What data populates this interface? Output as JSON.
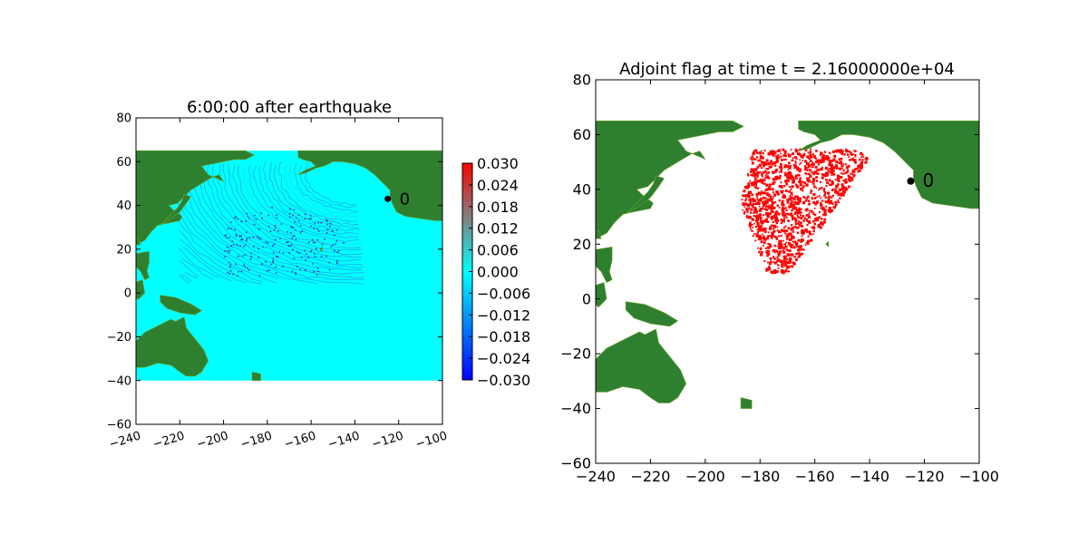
{
  "chart_data": [
    {
      "type": "heatmap",
      "title": "6:00:00 after earthquake",
      "xlabel": "",
      "ylabel": "",
      "xlim": [
        -240,
        -100
      ],
      "ylim": [
        -60,
        80
      ],
      "x_ticks": [
        -240,
        -220,
        -200,
        -180,
        -160,
        -140,
        -120,
        -100
      ],
      "y_ticks": [
        -60,
        -40,
        -20,
        0,
        20,
        40,
        60,
        80
      ],
      "x_tick_labels": [
        "−240",
        "−220",
        "−200",
        "−180",
        "−160",
        "−140",
        "−120",
        "−100"
      ],
      "y_tick_labels": [
        "−60",
        "−40",
        "−20",
        "0",
        "20",
        "40",
        "60",
        "80"
      ],
      "x_tick_rotation": "rotated",
      "data_extent": {
        "x": [
          -240,
          -100
        ],
        "y": [
          -40,
          65
        ]
      },
      "colorbar": {
        "colormap": "blue-cyan-red",
        "vmin": -0.03,
        "vmax": 0.03,
        "ticks": [
          0.03,
          0.024,
          0.018,
          0.012,
          0.006,
          0.0,
          -0.006,
          -0.012,
          -0.018,
          -0.024,
          -0.03
        ],
        "tick_labels": [
          "0.030",
          "0.024",
          "0.018",
          "0.012",
          "0.006",
          "0.000",
          "−0.006",
          "−0.012",
          "−0.018",
          "−0.024",
          "−0.030"
        ],
        "colors": [
          "#0000ff",
          "#00ffff",
          "#ff0000"
        ]
      },
      "background_value": 0.0,
      "background_color": "#00ffff",
      "land_color": "#2f7f30",
      "gauge": {
        "label": "0",
        "lon": -125,
        "lat": 43
      },
      "wave_front": {
        "description_value_range": [
          -0.03,
          0.03
        ],
        "lon_range": [
          -220,
          -135
        ],
        "lat_range": [
          3,
          55
        ]
      }
    },
    {
      "type": "heatmap",
      "title": "Adjoint flag at time t = 2.16000000e+04",
      "xlabel": "",
      "ylabel": "",
      "xlim": [
        -240,
        -100
      ],
      "ylim": [
        -60,
        80
      ],
      "x_ticks": [
        -240,
        -220,
        -200,
        -180,
        -160,
        -140,
        -120,
        -100
      ],
      "y_ticks": [
        -60,
        -40,
        -20,
        0,
        20,
        40,
        60,
        80
      ],
      "x_tick_labels": [
        "−240",
        "−220",
        "−200",
        "−180",
        "−160",
        "−140",
        "−120",
        "−100"
      ],
      "y_tick_labels": [
        "−60",
        "−40",
        "−20",
        "0",
        "20",
        "40",
        "60",
        "80"
      ],
      "data_extent": {
        "x": [
          -240,
          -100
        ],
        "y": [
          -40,
          65
        ]
      },
      "flag_color": "#ff0000",
      "land_color": "#2f7f30",
      "gauge": {
        "label": "0",
        "lon": -125,
        "lat": 43
      },
      "flagged_region": {
        "lon_range": [
          -195,
          -140
        ],
        "lat_range": [
          10,
          55
        ]
      }
    }
  ],
  "land_polygons": [
    {
      "name": "north-america",
      "points": [
        [
          -152,
          65
        ],
        [
          -100,
          65
        ],
        [
          -100,
          33
        ],
        [
          -103,
          33
        ],
        [
          -110,
          34
        ],
        [
          -117,
          35
        ],
        [
          -121,
          37
        ],
        [
          -123,
          41
        ],
        [
          -124,
          44
        ],
        [
          -124,
          47
        ],
        [
          -126,
          49
        ],
        [
          -131,
          54
        ],
        [
          -135,
          57
        ],
        [
          -140,
          59
        ],
        [
          -146,
          60
        ],
        [
          -150,
          60
        ],
        [
          -154,
          58
        ],
        [
          -158,
          57
        ],
        [
          -162,
          55
        ],
        [
          -166,
          54
        ],
        [
          -163,
          56
        ],
        [
          -158,
          58
        ],
        [
          -160,
          60
        ],
        [
          -164,
          61
        ],
        [
          -166,
          62
        ],
        [
          -166,
          65
        ]
      ]
    },
    {
      "name": "asia",
      "points": [
        [
          -240,
          65
        ],
        [
          -190,
          65
        ],
        [
          -186,
          63
        ],
        [
          -190,
          61
        ],
        [
          -195,
          61
        ],
        [
          -200,
          60
        ],
        [
          -205,
          59
        ],
        [
          -210,
          58
        ],
        [
          -207,
          54
        ],
        [
          -200,
          51
        ],
        [
          -202,
          54
        ],
        [
          -205,
          53
        ],
        [
          -210,
          50
        ],
        [
          -215,
          47
        ],
        [
          -218,
          44
        ],
        [
          -221,
          41
        ],
        [
          -225,
          40
        ],
        [
          -223,
          38
        ],
        [
          -219,
          35
        ],
        [
          -220,
          33
        ],
        [
          -225,
          32
        ],
        [
          -230,
          31
        ],
        [
          -233,
          28
        ],
        [
          -236,
          24
        ],
        [
          -240,
          22
        ]
      ]
    },
    {
      "name": "japan",
      "points": [
        [
          -218,
          45
        ],
        [
          -215,
          44
        ],
        [
          -217,
          41
        ],
        [
          -220,
          37
        ],
        [
          -224,
          34
        ],
        [
          -229,
          31
        ],
        [
          -227,
          33
        ],
        [
          -224,
          36
        ],
        [
          -221,
          39
        ],
        [
          -219,
          42
        ]
      ]
    },
    {
      "name": "taiwan",
      "points": [
        [
          -239,
          25
        ],
        [
          -238,
          22
        ],
        [
          -240,
          22
        ],
        [
          -240,
          25
        ]
      ]
    },
    {
      "name": "philippines",
      "points": [
        [
          -240,
          18
        ],
        [
          -234,
          19
        ],
        [
          -234,
          14
        ],
        [
          -235,
          10
        ],
        [
          -234,
          7
        ],
        [
          -236,
          6
        ],
        [
          -238,
          10
        ],
        [
          -240,
          12
        ]
      ]
    },
    {
      "name": "borneo",
      "points": [
        [
          -240,
          5
        ],
        [
          -237,
          6
        ],
        [
          -236,
          0
        ],
        [
          -239,
          -3
        ],
        [
          -240,
          -2
        ]
      ]
    },
    {
      "name": "new-guinea",
      "points": [
        [
          -229,
          -1
        ],
        [
          -222,
          -2
        ],
        [
          -215,
          -5
        ],
        [
          -210,
          -8
        ],
        [
          -213,
          -10
        ],
        [
          -220,
          -9
        ],
        [
          -226,
          -7
        ],
        [
          -229,
          -4
        ]
      ]
    },
    {
      "name": "australia",
      "points": [
        [
          -240,
          -22
        ],
        [
          -236,
          -18
        ],
        [
          -230,
          -15
        ],
        [
          -224,
          -12
        ],
        [
          -222,
          -13
        ],
        [
          -218,
          -11
        ],
        [
          -217,
          -16
        ],
        [
          -213,
          -21
        ],
        [
          -209,
          -26
        ],
        [
          -207,
          -31
        ],
        [
          -210,
          -36
        ],
        [
          -213,
          -38
        ],
        [
          -217,
          -38
        ],
        [
          -220,
          -36
        ],
        [
          -224,
          -33
        ],
        [
          -230,
          -32
        ],
        [
          -236,
          -34
        ],
        [
          -240,
          -34
        ]
      ]
    },
    {
      "name": "new-zealand",
      "points": [
        [
          -187,
          -36
        ],
        [
          -183,
          -37
        ],
        [
          -183,
          -40
        ],
        [
          -185,
          -42
        ],
        [
          -187,
          -40
        ]
      ]
    },
    {
      "name": "hawaii",
      "points": [
        [
          -156,
          20
        ],
        [
          -155,
          19
        ],
        [
          -155,
          21
        ]
      ]
    }
  ]
}
